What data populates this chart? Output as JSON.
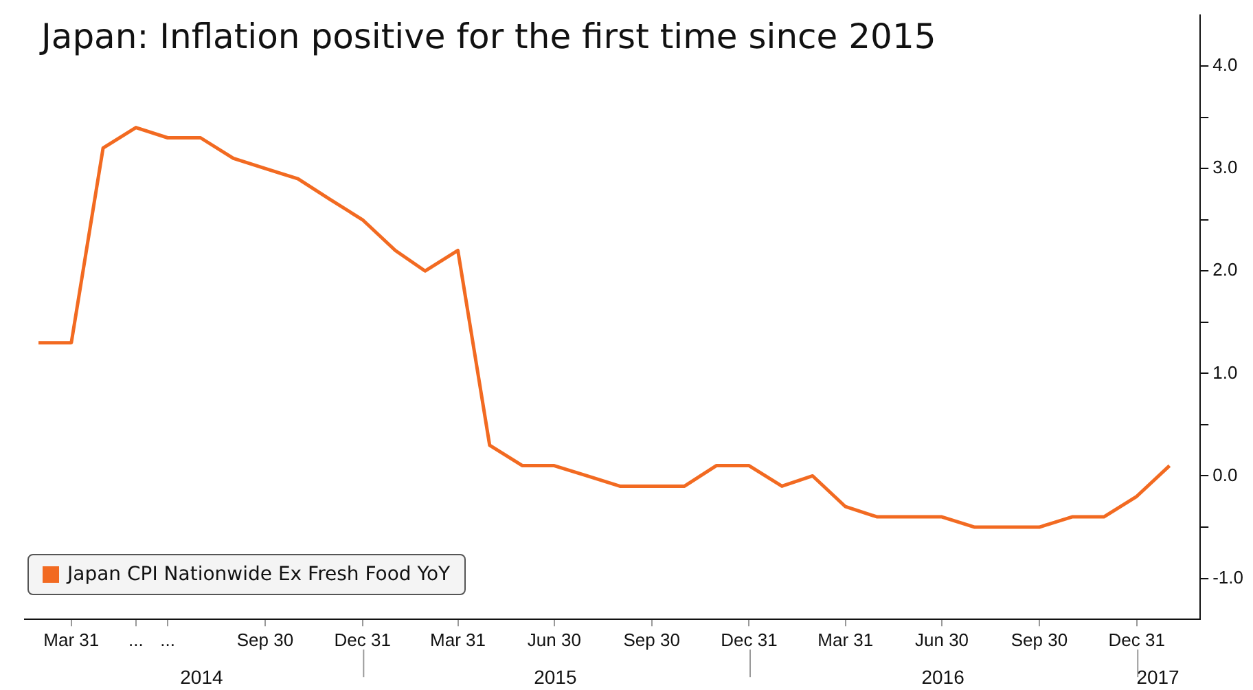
{
  "chart_data": {
    "type": "line",
    "title": "Japan: Inflation positive for the first time since 2015",
    "x": [
      "2014-02-28",
      "2014-03-31",
      "2014-04-30",
      "2014-05-31",
      "2014-06-30",
      "2014-07-31",
      "2014-08-31",
      "2014-09-30",
      "2014-10-31",
      "2014-11-30",
      "2014-12-31",
      "2015-01-31",
      "2015-02-28",
      "2015-03-31",
      "2015-04-30",
      "2015-05-31",
      "2015-06-30",
      "2015-07-31",
      "2015-08-31",
      "2015-09-30",
      "2015-10-31",
      "2015-11-30",
      "2015-12-31",
      "2016-01-31",
      "2016-02-29",
      "2016-03-31",
      "2016-04-30",
      "2016-05-31",
      "2016-06-30",
      "2016-07-31",
      "2016-08-31",
      "2016-09-30",
      "2016-10-31",
      "2016-11-30",
      "2016-12-31",
      "2017-01-31"
    ],
    "series": [
      {
        "name": "Japan CPI Nationwide Ex Fresh Food YoY",
        "color": "#f26a21",
        "values": [
          1.3,
          1.3,
          3.2,
          3.4,
          3.3,
          3.3,
          3.1,
          3.0,
          2.9,
          2.7,
          2.5,
          2.2,
          2.0,
          2.2,
          0.3,
          0.1,
          0.1,
          0.0,
          -0.1,
          -0.1,
          -0.1,
          0.1,
          0.1,
          -0.1,
          0.0,
          -0.3,
          -0.4,
          -0.4,
          -0.4,
          -0.5,
          -0.5,
          -0.5,
          -0.4,
          -0.4,
          -0.2,
          0.1
        ]
      }
    ],
    "xlim": [
      "2014-02-15",
      "2017-03-01"
    ],
    "xticks": [
      {
        "value": "2014-03-31",
        "label": "Mar 31"
      },
      {
        "value": "2014-05-31",
        "label": "..."
      },
      {
        "value": "2014-06-30",
        "label": "..."
      },
      {
        "value": "2014-09-30",
        "label": "Sep 30"
      },
      {
        "value": "2014-12-31",
        "label": "Dec 31"
      },
      {
        "value": "2015-03-31",
        "label": "Mar 31"
      },
      {
        "value": "2015-06-30",
        "label": "Jun 30"
      },
      {
        "value": "2015-09-30",
        "label": "Sep 30"
      },
      {
        "value": "2015-12-31",
        "label": "Dec 31"
      },
      {
        "value": "2016-03-31",
        "label": "Mar 31"
      },
      {
        "value": "2016-06-30",
        "label": "Jun 30"
      },
      {
        "value": "2016-09-30",
        "label": "Sep 30"
      },
      {
        "value": "2016-12-31",
        "label": "Dec 31"
      }
    ],
    "ylim": [
      -1.4,
      4.5
    ],
    "yticks": [
      {
        "value": -1,
        "label": "-1.0"
      },
      {
        "value": -0.5,
        "label": null
      },
      {
        "value": 0,
        "label": "0.0"
      },
      {
        "value": 0.5,
        "label": null
      },
      {
        "value": 1,
        "label": "1.0"
      },
      {
        "value": 1.5,
        "label": null
      },
      {
        "value": 2,
        "label": "2.0"
      },
      {
        "value": 2.5,
        "label": null
      },
      {
        "value": 3,
        "label": "3.0"
      },
      {
        "value": 3.5,
        "label": null
      },
      {
        "value": 4,
        "label": "4.0"
      }
    ],
    "x2lim": [
      "2014-02-15",
      "2017-03-01"
    ],
    "x2ticks": [
      {
        "value": "2014-08-01",
        "label": "2014"
      },
      {
        "value": "2015-07-01",
        "label": "2015"
      },
      {
        "value": "2016-07-01",
        "label": "2016"
      },
      {
        "value": "2017-01-20",
        "label": "2017"
      }
    ],
    "grid": false,
    "legend": "bottom left",
    "marker": "none",
    "line_style": "solid"
  }
}
